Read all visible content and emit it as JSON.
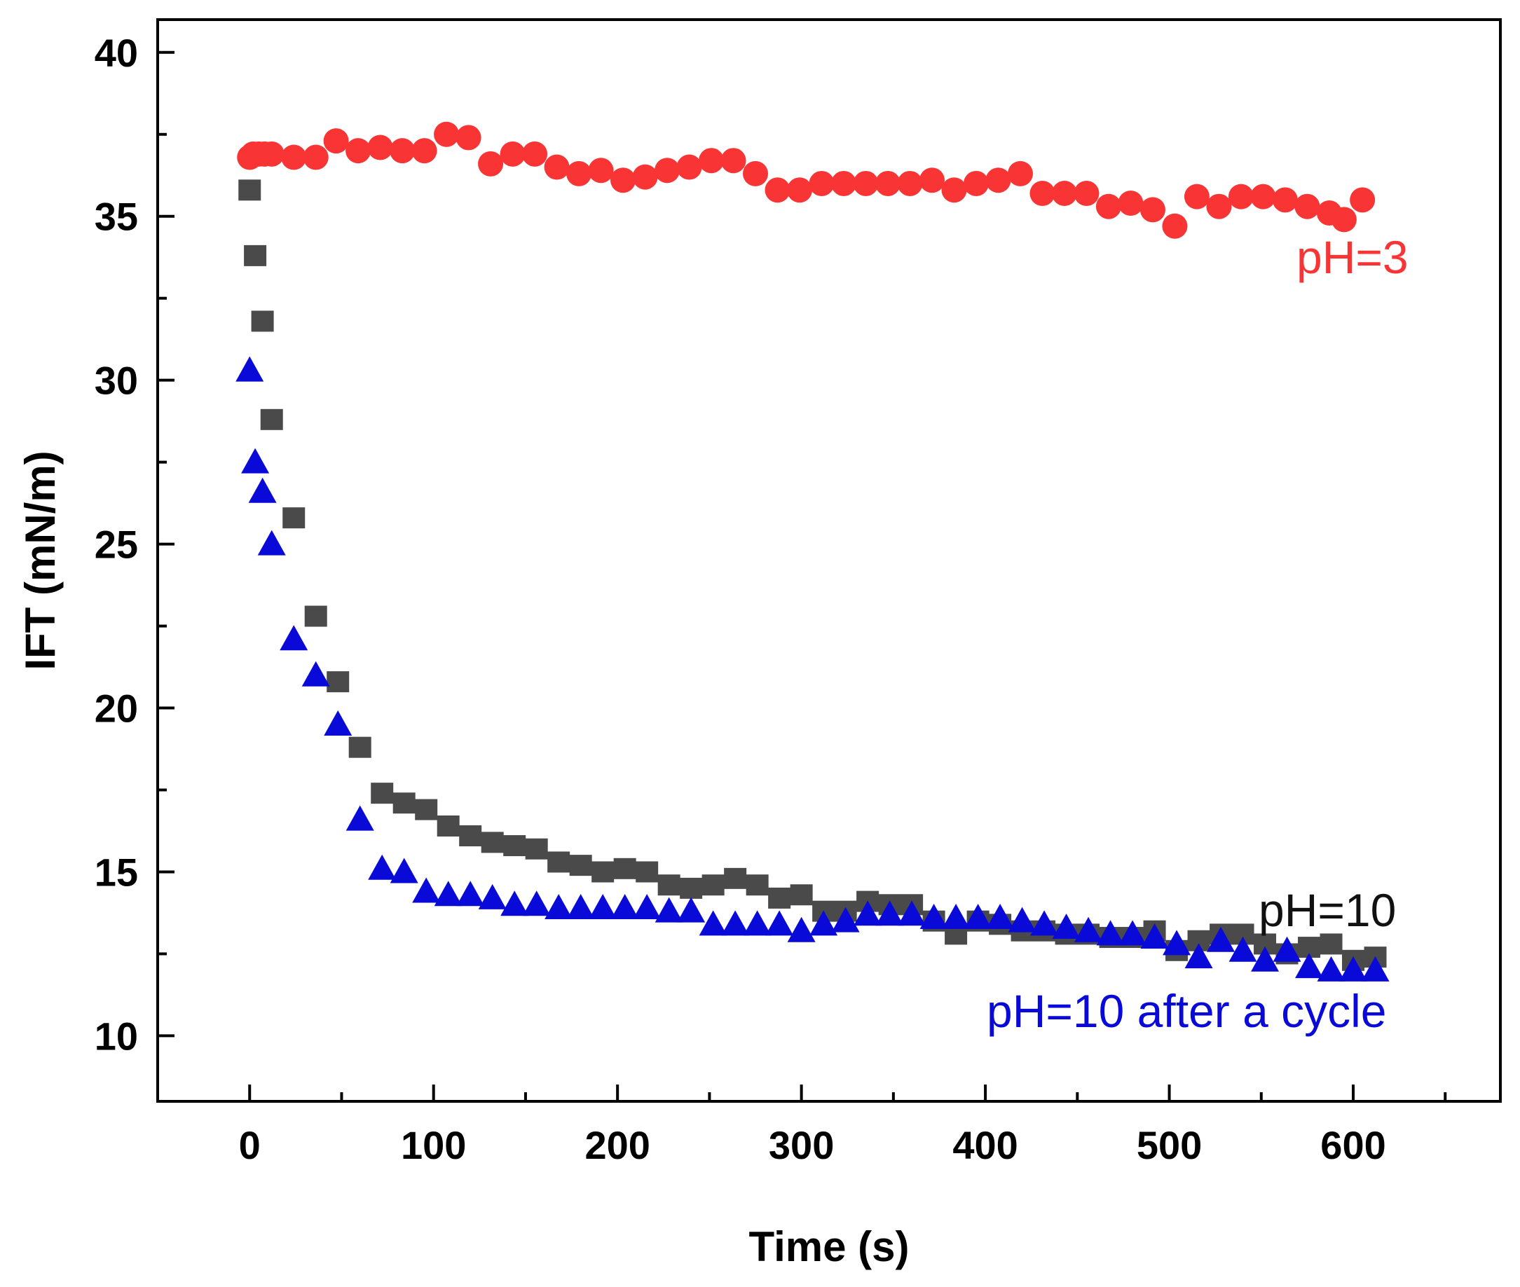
{
  "chart_data": {
    "type": "scatter",
    "title": "",
    "xlabel": "Time (s)",
    "ylabel": "IFT (mN/m)",
    "xlim": [
      -50,
      680
    ],
    "ylim": [
      8,
      41
    ],
    "xticks": [
      0,
      100,
      200,
      300,
      400,
      500,
      600
    ],
    "yticks": [
      10,
      15,
      20,
      25,
      30,
      35,
      40
    ],
    "grid": false,
    "series": [
      {
        "name": "pH=3",
        "marker": "circle",
        "color": "#f83434",
        "x": [
          0,
          2,
          5,
          8,
          12,
          24,
          36,
          47,
          59,
          71,
          83,
          95,
          107,
          119,
          131,
          143,
          155,
          167,
          179,
          191,
          203,
          215,
          227,
          239,
          251,
          263,
          275,
          287,
          299,
          311,
          323,
          335,
          347,
          359,
          371,
          383,
          395,
          407,
          419,
          431,
          443,
          455,
          467,
          479,
          491,
          503,
          515,
          527,
          539,
          551,
          563,
          575,
          587,
          595,
          605
        ],
        "y": [
          36.8,
          36.9,
          36.9,
          36.9,
          36.9,
          36.8,
          36.8,
          37.3,
          37.0,
          37.1,
          37.0,
          37.0,
          37.5,
          37.4,
          36.6,
          36.9,
          36.9,
          36.5,
          36.3,
          36.4,
          36.1,
          36.2,
          36.4,
          36.5,
          36.7,
          36.7,
          36.3,
          35.8,
          35.8,
          36.0,
          36.0,
          36.0,
          36.0,
          36.0,
          36.1,
          35.8,
          36.0,
          36.1,
          36.3,
          35.7,
          35.7,
          35.7,
          35.3,
          35.4,
          35.2,
          34.7,
          35.6,
          35.3,
          35.6,
          35.6,
          35.5,
          35.3,
          35.1,
          34.9,
          35.5
        ]
      },
      {
        "name": "pH=10",
        "marker": "square",
        "color": "#4a4a4a",
        "x": [
          0,
          3,
          7,
          12,
          24,
          36,
          48,
          60,
          72,
          84,
          96,
          108,
          120,
          132,
          144,
          156,
          168,
          180,
          192,
          204,
          216,
          228,
          240,
          252,
          264,
          276,
          288,
          300,
          312,
          324,
          336,
          348,
          360,
          372,
          384,
          396,
          408,
          420,
          432,
          444,
          456,
          468,
          480,
          492,
          504,
          516,
          528,
          540,
          552,
          564,
          576,
          588,
          600,
          612
        ],
        "y": [
          35.8,
          33.8,
          31.8,
          28.8,
          25.8,
          22.8,
          20.8,
          18.8,
          17.4,
          17.1,
          16.9,
          16.4,
          16.1,
          15.9,
          15.8,
          15.7,
          15.3,
          15.2,
          15.0,
          15.1,
          15.0,
          14.6,
          14.5,
          14.6,
          14.8,
          14.6,
          14.2,
          14.3,
          13.8,
          13.8,
          14.1,
          14.0,
          14.0,
          13.5,
          13.1,
          13.5,
          13.4,
          13.2,
          13.2,
          13.1,
          13.1,
          13.0,
          13.0,
          13.2,
          12.6,
          12.9,
          13.1,
          13.1,
          12.8,
          12.5,
          12.7,
          12.8,
          12.3,
          12.4
        ]
      },
      {
        "name": "pH=10 after a cycle",
        "marker": "triangle",
        "color": "#0a0ad8",
        "x": [
          0,
          3,
          7,
          12,
          24,
          36,
          48,
          60,
          72,
          84,
          96,
          108,
          120,
          132,
          144,
          156,
          168,
          180,
          192,
          204,
          216,
          228,
          240,
          252,
          264,
          276,
          288,
          300,
          312,
          324,
          336,
          348,
          360,
          372,
          384,
          396,
          408,
          420,
          432,
          444,
          456,
          468,
          480,
          492,
          504,
          516,
          528,
          540,
          552,
          564,
          576,
          588,
          600,
          612
        ],
        "y": [
          30.3,
          27.5,
          26.6,
          25.0,
          22.1,
          21.0,
          19.5,
          16.6,
          15.1,
          15.0,
          14.4,
          14.3,
          14.3,
          14.2,
          14.0,
          14.0,
          13.9,
          13.9,
          13.9,
          13.9,
          13.9,
          13.8,
          13.8,
          13.4,
          13.4,
          13.4,
          13.4,
          13.2,
          13.4,
          13.5,
          13.7,
          13.7,
          13.7,
          13.6,
          13.6,
          13.6,
          13.6,
          13.5,
          13.4,
          13.3,
          13.2,
          13.1,
          13.1,
          13.0,
          12.8,
          12.4,
          12.9,
          12.6,
          12.3,
          12.6,
          12.1,
          12.0,
          12.0,
          12.0
        ]
      }
    ],
    "annotations": [
      "pH=3",
      "pH=10",
      "pH=10 after a cycle"
    ]
  }
}
